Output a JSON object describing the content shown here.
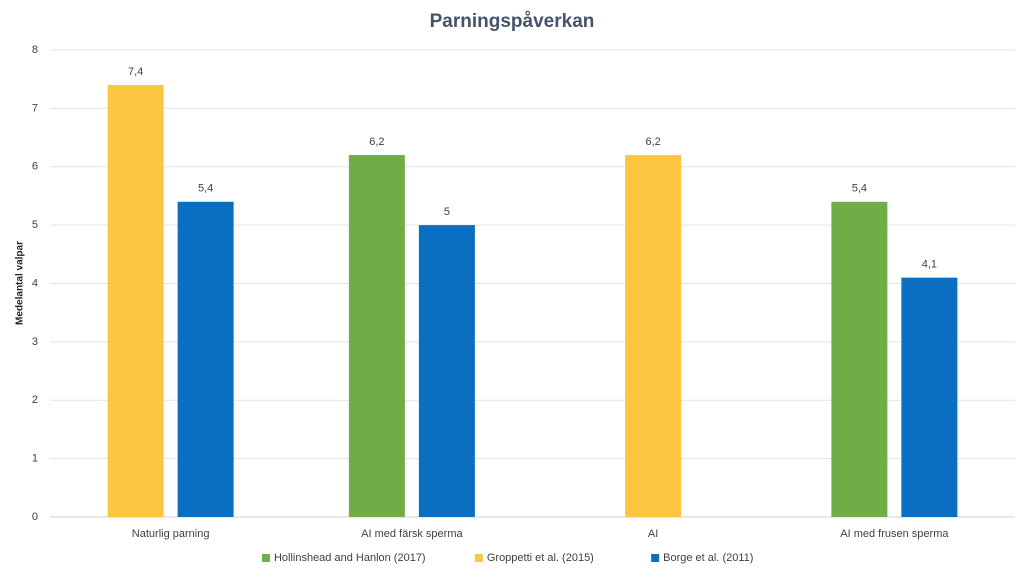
{
  "chart_data": {
    "type": "bar",
    "title": "Parningspåverkan",
    "y_label": "Medelantal valpar",
    "categories": [
      "Naturlig parning",
      "AI med färsk sperma",
      "AI",
      "AI med frusen sperma"
    ],
    "series": [
      {
        "name": "Hollinshead and Hanlon (2017)",
        "color": "#70ad47",
        "values": [
          null,
          6.2,
          null,
          5.4
        ],
        "value_labels": [
          null,
          "6,2",
          null,
          "5,4"
        ]
      },
      {
        "name": "Groppetti et al. (2015)",
        "color": "#fdc640",
        "values": [
          7.4,
          null,
          6.2,
          null
        ],
        "value_labels": [
          "7,4",
          null,
          "6,2",
          null
        ]
      },
      {
        "name": "Borge et al. (2011)",
        "color": "#0a6fc0",
        "values": [
          5.4,
          5,
          null,
          4.1
        ],
        "value_labels": [
          "5,4",
          "5",
          null,
          "4,1"
        ]
      }
    ],
    "ylim": [
      0,
      8
    ],
    "yticks": [
      0,
      1,
      2,
      3,
      4,
      5,
      6,
      7,
      8
    ],
    "grid": true,
    "legend": "bottom"
  }
}
